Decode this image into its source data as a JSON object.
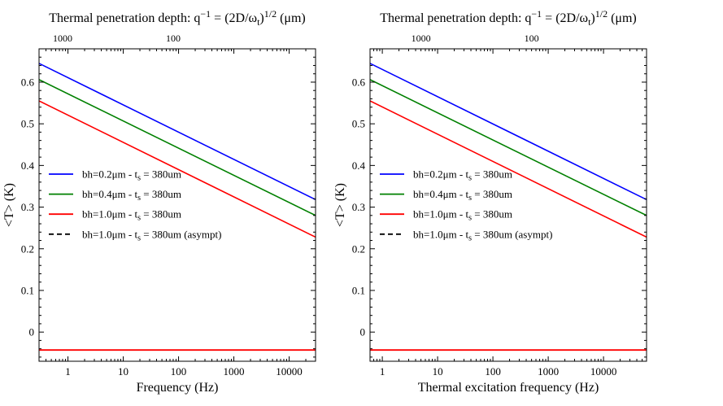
{
  "colors": {
    "blue": "#0000ff",
    "green": "#008000",
    "red": "#ff0000",
    "black": "#000000"
  },
  "chart_data": [
    {
      "type": "line",
      "title": "Thermal penetration depth: q⁻¹ = (2D/ωₜ)¹ᐟ² (μm)",
      "title_parts": {
        "lead": "Thermal penetration depth: q",
        "sup1": "−1",
        "mid": " = (2D/ω",
        "sub": "t",
        "close": ")",
        "sup2": "1/2",
        "tail": " (μm)"
      },
      "xlabel": "Frequency (Hz)",
      "ylabel": "<T> (K)",
      "x_scale": "log",
      "xlim": [
        0.3,
        30000
      ],
      "ylim": [
        -0.07,
        0.68
      ],
      "x_ticks": [
        {
          "v": 1,
          "label": "1"
        },
        {
          "v": 10,
          "label": "10"
        },
        {
          "v": 100,
          "label": "100"
        },
        {
          "v": 1000,
          "label": "1000"
        },
        {
          "v": 10000,
          "label": "10000"
        }
      ],
      "y_ticks": [
        {
          "v": 0,
          "label": "0"
        },
        {
          "v": 0.1,
          "label": "0.1"
        },
        {
          "v": 0.2,
          "label": "0.2"
        },
        {
          "v": 0.3,
          "label": "0.3"
        },
        {
          "v": 0.4,
          "label": "0.4"
        },
        {
          "v": 0.5,
          "label": "0.5"
        },
        {
          "v": 0.6,
          "label": "0.6"
        }
      ],
      "top_axis_ticks": [
        {
          "x": 0.8,
          "label": "1000"
        },
        {
          "x": 80,
          "label": "100"
        }
      ],
      "legend_position": "center-left",
      "series": [
        {
          "name": "bh=0.2μm - tₛ = 380um",
          "name_parts": {
            "pre": "bh=0.2μm - t",
            "sub": "s",
            "post": " = 380um"
          },
          "color": "#0000ff",
          "style": "solid",
          "x": [
            0.3,
            30000
          ],
          "y": [
            0.645,
            0.318
          ]
        },
        {
          "name": "bh=0.4μm - tₛ = 380um",
          "name_parts": {
            "pre": "bh=0.4μm - t",
            "sub": "s",
            "post": " = 380um"
          },
          "color": "#008000",
          "style": "solid",
          "x": [
            0.3,
            30000
          ],
          "y": [
            0.606,
            0.28
          ]
        },
        {
          "name": "bh=1.0μm - tₛ = 380um",
          "name_parts": {
            "pre": "bh=1.0μm - t",
            "sub": "s",
            "post": " = 380um"
          },
          "color": "#ff0000",
          "style": "solid",
          "x": [
            0.3,
            30000
          ],
          "y": [
            0.555,
            0.228
          ]
        },
        {
          "name": "bh=1.0μm -  tₛ = 380um  (asympt)",
          "name_parts": {
            "pre": "bh=1.0μm -  t",
            "sub": "s",
            "post": " = 380um  (asympt)"
          },
          "color": "#000000",
          "style": "dashed",
          "x": [
            0.3,
            30000
          ],
          "y": [
            0.555,
            0.228
          ]
        }
      ],
      "extra_lines": [
        {
          "color": "#ff0000",
          "x": [
            0.3,
            30000
          ],
          "y": [
            -0.043,
            -0.043
          ]
        }
      ]
    },
    {
      "type": "line",
      "title": "Thermal penetration depth: q⁻¹ = (2D/ωₜ)¹ᐟ² (μm)",
      "title_parts": {
        "lead": "Thermal penetration depth: q",
        "sup1": "−1",
        "mid": " = (2D/ω",
        "sub": "t",
        "close": ")",
        "sup2": "1/2",
        "tail": " (μm)"
      },
      "xlabel": "Thermal excitation frequency (Hz)",
      "ylabel": "<T> (K)",
      "x_scale": "log",
      "xlim": [
        0.6,
        60000
      ],
      "ylim": [
        -0.07,
        0.68
      ],
      "x_ticks": [
        {
          "v": 1,
          "label": "1"
        },
        {
          "v": 10,
          "label": "10"
        },
        {
          "v": 100,
          "label": "100"
        },
        {
          "v": 1000,
          "label": "1000"
        },
        {
          "v": 10000,
          "label": "10000"
        }
      ],
      "y_ticks": [
        {
          "v": 0,
          "label": "0"
        },
        {
          "v": 0.1,
          "label": "0.1"
        },
        {
          "v": 0.2,
          "label": "0.2"
        },
        {
          "v": 0.3,
          "label": "0.3"
        },
        {
          "v": 0.4,
          "label": "0.4"
        },
        {
          "v": 0.5,
          "label": "0.5"
        },
        {
          "v": 0.6,
          "label": "0.6"
        }
      ],
      "top_axis_ticks": [
        {
          "x": 5,
          "label": "1000"
        },
        {
          "x": 500,
          "label": "100"
        }
      ],
      "legend_position": "center-left",
      "series": [
        {
          "name": "bh=0.2μm - tₛ = 380um",
          "name_parts": {
            "pre": "bh=0.2μm - t",
            "sub": "s",
            "post": " = 380um"
          },
          "color": "#0000ff",
          "style": "solid",
          "x": [
            0.6,
            60000
          ],
          "y": [
            0.645,
            0.318
          ]
        },
        {
          "name": "bh=0.4μm - tₛ = 380um",
          "name_parts": {
            "pre": "bh=0.4μm - t",
            "sub": "s",
            "post": " = 380um"
          },
          "color": "#008000",
          "style": "solid",
          "x": [
            0.6,
            60000
          ],
          "y": [
            0.606,
            0.28
          ]
        },
        {
          "name": "bh=1.0μm - tₛ = 380um",
          "name_parts": {
            "pre": "bh=1.0μm - t",
            "sub": "s",
            "post": " = 380um"
          },
          "color": "#ff0000",
          "style": "solid",
          "x": [
            0.6,
            60000
          ],
          "y": [
            0.555,
            0.228
          ]
        },
        {
          "name": "bh=1.0μm -  tₛ = 380um  (asympt)",
          "name_parts": {
            "pre": "bh=1.0μm -  t",
            "sub": "s",
            "post": " = 380um  (asympt)"
          },
          "color": "#000000",
          "style": "dashed",
          "x": [
            0.6,
            60000
          ],
          "y": [
            0.555,
            0.228
          ]
        }
      ],
      "extra_lines": [
        {
          "color": "#ff0000",
          "x": [
            0.6,
            60000
          ],
          "y": [
            -0.043,
            -0.043
          ]
        }
      ]
    }
  ]
}
